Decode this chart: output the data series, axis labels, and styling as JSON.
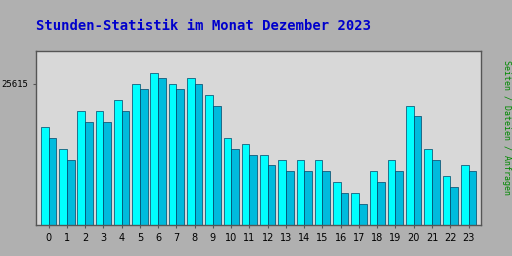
{
  "title": "Stunden-Statistik im Monat Dezember 2023",
  "title_color": "#0000cc",
  "ylabel": "Seiten / Dateien / Anfragen",
  "ylabel_color": "#008800",
  "ytick_label": "25615",
  "background_color": "#b0b0b0",
  "plot_background": "#d8d8d8",
  "bar_color_main": "#00ffff",
  "bar_color_secondary": "#00bbdd",
  "bar_edge_color": "#004466",
  "hours": [
    0,
    1,
    2,
    3,
    4,
    5,
    6,
    7,
    8,
    9,
    10,
    11,
    12,
    13,
    14,
    15,
    16,
    17,
    18,
    19,
    20,
    21,
    22,
    23
  ],
  "values1": [
    92,
    88,
    95,
    95,
    97,
    100,
    102,
    100,
    101,
    98,
    90,
    89,
    87,
    86,
    86,
    86,
    82,
    80,
    84,
    86,
    96,
    88,
    83,
    85
  ],
  "values2": [
    90,
    86,
    93,
    93,
    95,
    99,
    101,
    99,
    100,
    96,
    88,
    87,
    85,
    84,
    84,
    84,
    80,
    78,
    82,
    84,
    94,
    86,
    81,
    84
  ],
  "ylim_min": 74,
  "ylim_max": 106,
  "ytick_value": 100,
  "title_fontsize": 10,
  "bar_width": 0.42
}
